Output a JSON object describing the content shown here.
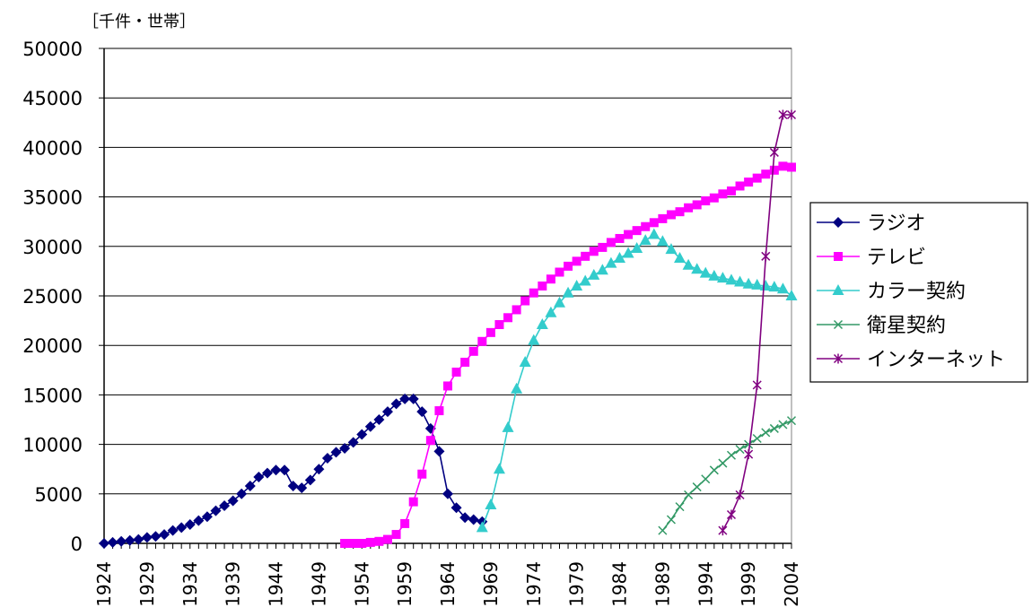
{
  "chart_data": {
    "type": "line",
    "unit_label": "［千件・世帯］",
    "ylim": [
      0,
      50000
    ],
    "xlim": [
      1924,
      2004
    ],
    "y_ticks": [
      0,
      5000,
      10000,
      15000,
      20000,
      25000,
      30000,
      35000,
      40000,
      45000,
      50000
    ],
    "x_tick_labels": [
      "1924",
      "1929",
      "1934",
      "1939",
      "1944",
      "1949",
      "1954",
      "1959",
      "1964",
      "1969",
      "1974",
      "1979",
      "1984",
      "1989",
      "1994",
      "1999",
      "2004"
    ],
    "grid": "horizontal",
    "legend_position": "right",
    "series": [
      {
        "name": "ラジオ",
        "color": "#000080",
        "marker": "diamond",
        "x": [
          1924,
          1925,
          1926,
          1927,
          1928,
          1929,
          1930,
          1931,
          1932,
          1933,
          1934,
          1935,
          1936,
          1937,
          1938,
          1939,
          1940,
          1941,
          1942,
          1943,
          1944,
          1945,
          1946,
          1947,
          1948,
          1949,
          1950,
          1951,
          1952,
          1953,
          1954,
          1955,
          1956,
          1957,
          1958,
          1959,
          1960,
          1961,
          1962,
          1963,
          1964,
          1965,
          1966,
          1967,
          1968
        ],
        "y": [
          0,
          100,
          200,
          300,
          400,
          600,
          700,
          900,
          1300,
          1600,
          1900,
          2300,
          2700,
          3300,
          3800,
          4300,
          5000,
          5800,
          6700,
          7100,
          7400,
          7400,
          5800,
          5600,
          6400,
          7500,
          8600,
          9200,
          9600,
          10200,
          11000,
          11800,
          12500,
          13300,
          14100,
          14600,
          14600,
          13300,
          11600,
          9300,
          5000,
          3600,
          2600,
          2400,
          2200
        ]
      },
      {
        "name": "テレビ",
        "color": "#FF00FF",
        "marker": "square",
        "x": [
          1952,
          1953,
          1954,
          1955,
          1956,
          1957,
          1958,
          1959,
          1960,
          1961,
          1962,
          1963,
          1964,
          1965,
          1966,
          1967,
          1968,
          1969,
          1970,
          1971,
          1972,
          1973,
          1974,
          1975,
          1976,
          1977,
          1978,
          1979,
          1980,
          1981,
          1982,
          1983,
          1984,
          1985,
          1986,
          1987,
          1988,
          1989,
          1990,
          1991,
          1992,
          1993,
          1994,
          1995,
          1996,
          1997,
          1998,
          1999,
          2000,
          2001,
          2002,
          2003,
          2004
        ],
        "y": [
          0,
          0,
          0,
          100,
          200,
          400,
          900,
          2000,
          4200,
          7000,
          10400,
          13400,
          15900,
          17300,
          18300,
          19400,
          20400,
          21300,
          22100,
          22800,
          23600,
          24500,
          25300,
          26000,
          26700,
          27400,
          28000,
          28500,
          29000,
          29500,
          29900,
          30400,
          30800,
          31200,
          31600,
          32000,
          32400,
          32800,
          33200,
          33500,
          33900,
          34200,
          34600,
          34900,
          35300,
          35600,
          36100,
          36500,
          36900,
          37300,
          37700,
          38100,
          38000
        ]
      },
      {
        "name": "カラー契約",
        "color": "#33CCCC",
        "marker": "triangle",
        "x": [
          1968,
          1969,
          1970,
          1971,
          1972,
          1973,
          1974,
          1975,
          1976,
          1977,
          1978,
          1979,
          1980,
          1981,
          1982,
          1983,
          1984,
          1985,
          1986,
          1987,
          1988,
          1989,
          1990,
          1991,
          1992,
          1993,
          1994,
          1995,
          1996,
          1997,
          1998,
          1999,
          2000,
          2001,
          2002,
          2003,
          2004
        ],
        "y": [
          1600,
          3900,
          7500,
          11700,
          15600,
          18300,
          20500,
          22100,
          23300,
          24300,
          25300,
          26000,
          26500,
          27100,
          27600,
          28300,
          28800,
          29300,
          29800,
          30600,
          31200,
          30500,
          29700,
          28800,
          28100,
          27700,
          27300,
          27000,
          26800,
          26600,
          26400,
          26200,
          26100,
          26000,
          25900,
          25700,
          25000
        ]
      },
      {
        "name": "衛星契約",
        "color": "#339966",
        "marker": "x",
        "x": [
          1989,
          1990,
          1991,
          1992,
          1993,
          1994,
          1995,
          1996,
          1997,
          1998,
          1999,
          2000,
          2001,
          2002,
          2003,
          2004
        ],
        "y": [
          1300,
          2400,
          3700,
          4900,
          5700,
          6500,
          7400,
          8100,
          8900,
          9500,
          10000,
          10600,
          11200,
          11600,
          12000,
          12400
        ]
      },
      {
        "name": "インターネット",
        "color": "#800080",
        "marker": "star",
        "x": [
          1996,
          1997,
          1998,
          1999,
          2000,
          2001,
          2002,
          2003,
          2004
        ],
        "y": [
          1300,
          2900,
          4900,
          9000,
          16000,
          29000,
          39500,
          43300,
          43300
        ]
      }
    ]
  }
}
